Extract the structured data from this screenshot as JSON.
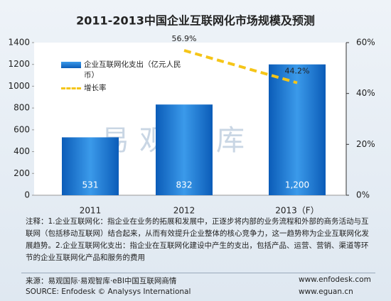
{
  "chart_data": {
    "type": "bar",
    "title": "2011-2013中国企业互联网化市场规模及预测",
    "categories": [
      "2011",
      "2012",
      "2013（F）"
    ],
    "series": [
      {
        "name": "企业互联网化支出（亿元人民币）",
        "type": "bar",
        "color": "#1f7fd6",
        "values": [
          531,
          832,
          1200
        ],
        "value_labels": [
          "531",
          "832",
          "1,200"
        ]
      },
      {
        "name": "增长率",
        "type": "line",
        "axis": "y2",
        "color": "#f5c518",
        "values": [
          null,
          56.9,
          44.2
        ],
        "value_labels": [
          null,
          "56.9%",
          "44.2%"
        ]
      }
    ],
    "ylim": [
      0,
      1400
    ],
    "yticks": [
      0,
      200,
      400,
      600,
      800,
      1000,
      1200,
      1400
    ],
    "y2lim": [
      0,
      60
    ],
    "y2ticks": [
      {
        "value": 0,
        "label": "0%"
      },
      {
        "value": 20,
        "label": "20%"
      },
      {
        "value": 40,
        "label": "40%"
      },
      {
        "value": 60,
        "label": "60%"
      }
    ],
    "watermark": "易观智库",
    "note": "注释：1.企业互联网化：指企业在业务的拓展和发展中，正逐步将内部的业务流程和外部的商务活动与互联网（包括移动互联网）结合起来，从而有效提升企业整体的核心竞争力，这一趋势称为企业互联网化发展趋势。2.企业互联网化支出：指企业在互联网化建设中产生的支出，包括产品、运营、营销、渠道等环节的企业互联网化产品和服务的费用",
    "source_cn": "来源：易观国际·易观智库·eBI中国互联网商情",
    "source_en": "SOURCE: Enfodesk © Analysys International",
    "site1": "www.enfodesk.com",
    "site2": "www.eguan.cn"
  }
}
